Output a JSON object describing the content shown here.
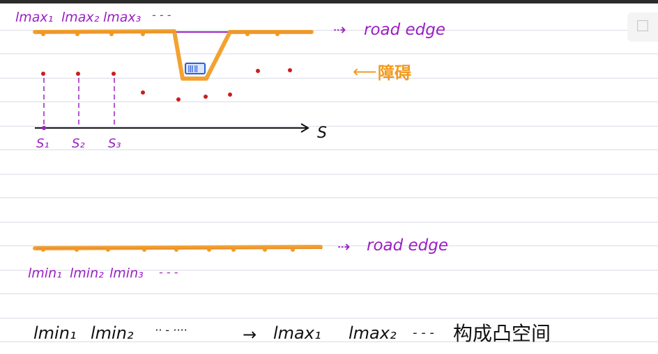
{
  "top": {
    "lmax_labels": [
      "lmax₁",
      "lmax₂",
      "lmax₃"
    ],
    "lmax_ellipsis": "- - -",
    "road_edge_label": "road edge",
    "obstacle_label": "ⅢⅡ",
    "obstacle_note": "障碍",
    "s_ticks": [
      "S₁",
      "S₂",
      "S₃"
    ],
    "s_axis": "S"
  },
  "middle": {
    "road_edge_label": "road edge",
    "lmin_labels": [
      "lmin₁",
      "lmin₂",
      "lmin₃"
    ],
    "lmin_ellipsis": "- - -"
  },
  "bottom": {
    "lmin_1": "lmin₁",
    "lmin_2": "lmin₂",
    "ellipsis_a": "·· - ····",
    "connector": "→",
    "lmax_1": "lmax₁",
    "lmax_2": "lmax₂",
    "ellipsis_b": "- - -",
    "result": "构成凸空间"
  },
  "colors": {
    "ink_purple": "#9b1fc4",
    "highlighter": "#f29a1f",
    "obstacle_blue": "#2b5fd6",
    "point_red": "#c81e1e",
    "axis_black": "#111111"
  }
}
